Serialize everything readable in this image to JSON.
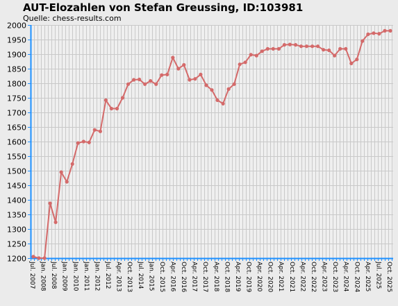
{
  "chart_data": {
    "type": "line",
    "title": "AUT-Elozahlen von Stefan Greussing, ID:103981",
    "subtitle": "Quelle: chess-results.com",
    "xlabel": "",
    "ylabel": "",
    "ylim": [
      1200,
      2000
    ],
    "yticks": [
      1200,
      1250,
      1300,
      1350,
      1400,
      1450,
      1500,
      1550,
      1600,
      1650,
      1700,
      1750,
      1800,
      1850,
      1900,
      1950,
      2000
    ],
    "grid": true,
    "line_color": "#d46a6a",
    "axis_color": "#1e90ff",
    "x_tick_labels": [
      "Jul. 2007",
      "Jan. 2008",
      "Jul. 2008",
      "Jan. 2009",
      "Jan. 2010",
      "Jan. 2011",
      "Jan. 2012",
      "Jul. 2012",
      "Apr. 2013",
      "Oct. 2013",
      "Jul. 2014",
      "Jan. 2015",
      "Oct. 2015",
      "Apr. 2016",
      "Oct. 2016",
      "Apr. 2017",
      "Oct. 2017",
      "Apr. 2018",
      "Oct. 2018",
      "Apr. 2019",
      "Oct. 2019",
      "Apr. 2020",
      "Oct. 2020",
      "Apr. 2021",
      "Oct. 2021",
      "Apr. 2022",
      "Oct. 2022",
      "Apr. 2023",
      "Oct. 2023",
      "Apr. 2024",
      "Oct. 2024",
      "Apr. 2025",
      "Jul. 2025",
      "Oct. 2025"
    ],
    "series": [
      {
        "values": [
          1205,
          1200,
          1200,
          1388,
          1323,
          1495,
          1462,
          1523,
          1595,
          1600,
          1597,
          1640,
          1635,
          1742,
          1713,
          1713,
          1750,
          1797,
          1812,
          1813,
          1797,
          1808,
          1797,
          1828,
          1830,
          1888,
          1850,
          1863,
          1812,
          1815,
          1830,
          1793,
          1777,
          1742,
          1730,
          1780,
          1797,
          1865,
          1872,
          1898,
          1895,
          1910,
          1918,
          1918,
          1918,
          1932,
          1933,
          1932,
          1927,
          1927,
          1927,
          1927,
          1915,
          1913,
          1895,
          1918,
          1918,
          1868,
          1882,
          1945,
          1968,
          1972,
          1970,
          1980,
          1980
        ]
      }
    ]
  }
}
